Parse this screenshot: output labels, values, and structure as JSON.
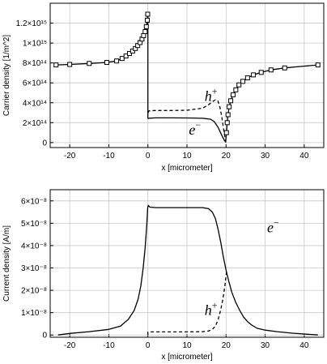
{
  "chart_data": [
    {
      "type": "line",
      "title": "",
      "xlabel": "x [micrometer]",
      "ylabel": "Carrier density [1/m^2]",
      "xlim": [
        -25,
        45
      ],
      "ylim": [
        -50000000000000,
        1400000000000000
      ],
      "grid": true,
      "x_ticks": [
        -20,
        -10,
        0,
        10,
        20,
        30,
        40
      ],
      "x_tick_labels": [
        "-20",
        "-10",
        "0",
        "10",
        "20",
        "30",
        "40"
      ],
      "y_ticks": [
        0,
        200000000000000,
        400000000000000,
        600000000000000,
        800000000000000,
        1000000000000000,
        1200000000000000
      ],
      "y_tick_labels": [
        "0",
        "2×10¹⁴",
        "4×10¹⁴",
        "6×10¹⁴",
        "8×10¹⁴",
        "1×10¹⁵",
        "1.2×10¹⁵"
      ],
      "annotations": [
        {
          "text": "h",
          "sup": "+",
          "x": 14.5,
          "y": 420000000000000
        },
        {
          "text": "e",
          "sup": "−",
          "x": 10.5,
          "y": 80000000000000
        }
      ],
      "series": [
        {
          "style": "solid-squares",
          "x": [
            -23.5,
            -20,
            -15,
            -10.5,
            -8,
            -6.6,
            -5.6,
            -4.7,
            -3.9,
            -3.2,
            -2.6,
            -2.0,
            -1.5,
            -1.1,
            -0.7,
            -0.4,
            -0.15,
            -0.05
          ],
          "y": [
            780000000000000,
            785000000000000,
            795000000000000,
            805000000000000,
            820000000000000,
            845000000000000,
            870000000000000,
            895000000000000,
            920000000000000,
            945000000000000,
            975000000000000,
            1005000000000000,
            1040000000000000,
            1075000000000000,
            1115000000000000,
            1165000000000000,
            1230000000000000,
            1290000000000000
          ]
        },
        {
          "style": "solid",
          "x": [
            0,
            0
          ],
          "y": [
            1290000000000000,
            240000000000000
          ]
        },
        {
          "style": "solid",
          "x": [
            0,
            0.3,
            2,
            6,
            10,
            14,
            16,
            17,
            18,
            18.7,
            19.2,
            19.6,
            19.9,
            20.1,
            20.3,
            20.5,
            20.8,
            21.2,
            21.8,
            22.5,
            23.3,
            24.3,
            25.5,
            27,
            29,
            31.5,
            35,
            39,
            43.5
          ],
          "y": [
            240000000000000,
            245000000000000,
            248000000000000,
            248000000000000,
            247000000000000,
            244000000000000,
            235000000000000,
            210000000000000,
            150000000000000,
            90000000000000,
            50000000000000,
            20000000000000,
            5000000000000,
            100000000000000,
            200000000000000,
            280000000000000,
            360000000000000,
            420000000000000,
            480000000000000,
            530000000000000,
            580000000000000,
            615000000000000,
            650000000000000,
            680000000000000,
            705000000000000,
            730000000000000,
            750000000000000,
            765000000000000,
            780000000000000
          ]
        },
        {
          "style": "dashed",
          "x": [
            0.05,
            0.3,
            2,
            6,
            10,
            14,
            15.5,
            16.5,
            17.3,
            17.9,
            18.4,
            18.9,
            19.3,
            19.7,
            19.95
          ],
          "y": [
            300000000000000,
            320000000000000,
            322000000000000,
            322000000000000,
            325000000000000,
            345000000000000,
            380000000000000,
            410000000000000,
            430000000000000,
            420000000000000,
            360000000000000,
            260000000000000,
            150000000000000,
            60000000000000,
            10000000000000
          ]
        },
        {
          "style": "squares",
          "x": [
            20.1,
            20.3,
            20.5,
            20.8,
            21.2,
            21.8,
            22.5,
            23.3,
            24.3,
            25.5,
            27,
            29,
            31.5,
            35,
            43.5
          ],
          "y": [
            100000000000000,
            200000000000000,
            280000000000000,
            360000000000000,
            420000000000000,
            480000000000000,
            530000000000000,
            580000000000000,
            615000000000000,
            650000000000000,
            680000000000000,
            705000000000000,
            730000000000000,
            750000000000000,
            780000000000000
          ]
        }
      ]
    },
    {
      "type": "line",
      "title": "",
      "xlabel": "x [micrometer]",
      "ylabel": "Current density [A/m]",
      "xlim": [
        -25,
        45
      ],
      "ylim": [
        -1e-09,
        6.5e-08
      ],
      "grid": true,
      "x_ticks": [
        -20,
        -10,
        0,
        10,
        20,
        30,
        40
      ],
      "x_tick_labels": [
        "-20",
        "-10",
        "0",
        "10",
        "20",
        "30",
        "40"
      ],
      "y_ticks": [
        0,
        1e-08,
        2e-08,
        3e-08,
        4e-08,
        5e-08,
        6e-08
      ],
      "y_tick_labels": [
        "0",
        "1×10⁻⁸",
        "2×10⁻⁸",
        "3×10⁻⁸",
        "4×10⁻⁸",
        "5×10⁻⁸",
        "6×10⁻⁸"
      ],
      "annotations": [
        {
          "text": "e",
          "sup": "−",
          "x": 30.5,
          "y": 4.6e-08
        },
        {
          "text": "h",
          "sup": "+",
          "x": 14.5,
          "y": 9e-09
        }
      ],
      "series": [
        {
          "style": "solid",
          "x": [
            -23,
            -20,
            -15,
            -10,
            -7,
            -5,
            -3.5,
            -2.5,
            -1.8,
            -1.2,
            -0.7,
            -0.3,
            -0.05,
            0.1,
            0.5,
            2,
            6,
            10,
            14,
            15.5,
            16.5,
            17.3,
            18,
            18.7,
            19.3,
            20,
            20.7,
            21.5,
            22.5,
            23.5,
            24.5,
            25.5,
            26.5,
            28,
            30,
            33,
            37,
            43.5
          ],
          "y": [
            0,
            7e-10,
            1.5e-09,
            2.5e-09,
            4e-09,
            7e-09,
            1.1e-08,
            1.6e-08,
            2.2e-08,
            3e-08,
            3.9e-08,
            4.9e-08,
            5.7e-08,
            5.8e-08,
            5.72e-08,
            5.7e-08,
            5.7e-08,
            5.7e-08,
            5.7e-08,
            5.65e-08,
            5.5e-08,
            5.2e-08,
            4.7e-08,
            4.1e-08,
            3.5e-08,
            2.9e-08,
            2.4e-08,
            1.9e-08,
            1.45e-08,
            1.1e-08,
            8e-09,
            6e-09,
            4.5e-09,
            3e-09,
            2.2e-09,
            1.5e-09,
            8e-10,
            0
          ]
        },
        {
          "style": "dashed",
          "x": [
            0,
            0,
            0.5,
            5,
            10,
            14,
            15.5,
            16.5,
            17.3,
            18,
            18.6,
            19.2,
            19.7,
            20.1
          ],
          "y": [
            0,
            1.3e-09,
            1.4e-09,
            1.4e-09,
            1.4e-09,
            1.5e-09,
            1.8e-09,
            2.5e-09,
            4e-09,
            7e-09,
            1.1e-08,
            1.6e-08,
            2.2e-08,
            2.8e-08
          ]
        }
      ]
    }
  ]
}
